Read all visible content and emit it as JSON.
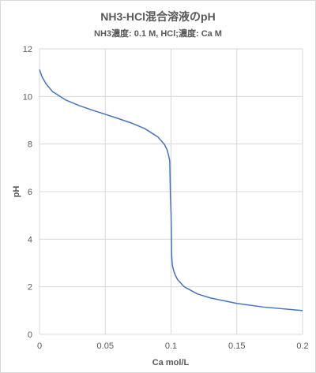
{
  "chart_data": {
    "type": "line",
    "title": "NH3-HCl混合溶液のpH",
    "subtitle": "NH3濃度: 0.1 M, HCl;濃度: Ca M",
    "xlabel": "Ca mol/L",
    "ylabel": "pH",
    "xlim": [
      0,
      0.2
    ],
    "ylim": [
      0,
      12
    ],
    "xticks": [
      0,
      0.05,
      0.1,
      0.15,
      0.2
    ],
    "xtick_labels": [
      "0",
      "0.05",
      "0.1",
      "0.15",
      "0.2"
    ],
    "yticks": [
      0,
      2,
      4,
      6,
      8,
      10,
      12
    ],
    "ytick_labels": [
      "0",
      "2",
      "4",
      "6",
      "8",
      "10",
      "12"
    ],
    "grid": true,
    "legend": "none",
    "series_color": "#4472c4",
    "grid_color": "#d9d9d9",
    "series": [
      {
        "x": [
          0,
          0.002,
          0.005,
          0.01,
          0.02,
          0.03,
          0.04,
          0.05,
          0.06,
          0.07,
          0.08,
          0.09,
          0.095,
          0.097,
          0.098,
          0.099,
          0.0995,
          0.1,
          0.1005,
          0.101,
          0.102,
          0.103,
          0.105,
          0.11,
          0.12,
          0.13,
          0.15,
          0.17,
          0.2
        ],
        "y": [
          11.13,
          10.82,
          10.53,
          10.2,
          9.85,
          9.62,
          9.43,
          9.25,
          9.07,
          8.88,
          8.65,
          8.3,
          7.98,
          7.76,
          7.56,
          7.3,
          5.9,
          5.13,
          3.3,
          2.9,
          2.68,
          2.52,
          2.3,
          2.0,
          1.7,
          1.53,
          1.3,
          1.15,
          1.0
        ]
      }
    ]
  }
}
